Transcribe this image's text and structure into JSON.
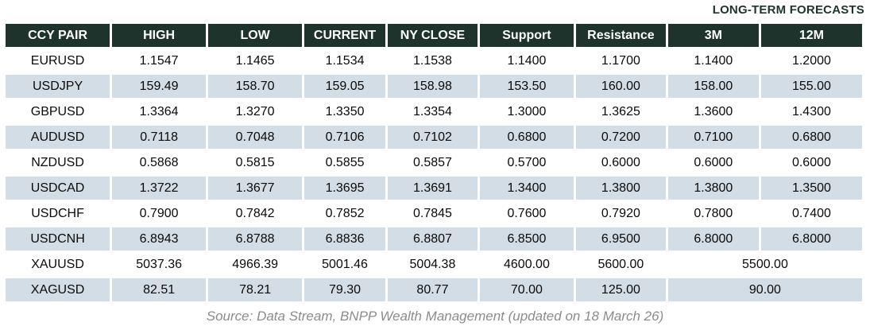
{
  "forecast_label": "LONG-TERM FORECASTS",
  "table": {
    "columns": [
      "CCY PAIR",
      "HIGH",
      "LOW",
      "CURRENT",
      "NY CLOSE",
      "Support",
      "Resistance",
      "3M",
      "12M"
    ],
    "rows": [
      {
        "cells": [
          "EURUSD",
          "1.1547",
          "1.1465",
          "1.1534",
          "1.1538",
          "1.1400",
          "1.1700",
          "1.1400",
          "1.2000"
        ]
      },
      {
        "cells": [
          "USDJPY",
          "159.49",
          "158.70",
          "159.05",
          "158.98",
          "153.50",
          "160.00",
          "158.00",
          "155.00"
        ]
      },
      {
        "cells": [
          "GBPUSD",
          "1.3364",
          "1.3270",
          "1.3350",
          "1.3354",
          "1.3000",
          "1.3625",
          "1.3600",
          "1.4300"
        ]
      },
      {
        "cells": [
          "AUDUSD",
          "0.7118",
          "0.7048",
          "0.7106",
          "0.7102",
          "0.6800",
          "0.7200",
          "0.7100",
          "0.6800"
        ]
      },
      {
        "cells": [
          "NZDUSD",
          "0.5868",
          "0.5815",
          "0.5855",
          "0.5857",
          "0.5700",
          "0.6000",
          "0.6000",
          "0.6000"
        ]
      },
      {
        "cells": [
          "USDCAD",
          "1.3722",
          "1.3677",
          "1.3695",
          "1.3691",
          "1.3400",
          "1.3800",
          "1.3800",
          "1.3500"
        ]
      },
      {
        "cells": [
          "USDCHF",
          "0.7900",
          "0.7842",
          "0.7852",
          "0.7845",
          "0.7600",
          "0.7920",
          "0.7800",
          "0.7400"
        ]
      },
      {
        "cells": [
          "USDCNH",
          "6.8943",
          "6.8788",
          "6.8836",
          "6.8807",
          "6.8500",
          "6.9500",
          "6.8000",
          "6.8000"
        ]
      },
      {
        "cells": [
          "XAUUSD",
          "5037.36",
          "4966.39",
          "5001.46",
          "5004.38",
          "4600.00",
          "5600.00"
        ],
        "forecast_merged": "5500.00"
      },
      {
        "cells": [
          "XAGUSD",
          "82.51",
          "78.21",
          "79.30",
          "80.77",
          "70.00",
          "125.00"
        ],
        "forecast_merged": "90.00"
      }
    ]
  },
  "footer": {
    "source": "Source: Data Stream, BNPP Wealth Management (updated on 18 March 26)"
  },
  "colors": {
    "header_bg": "#1d332c",
    "header_text": "#ffffff",
    "alt_row_bg": "#d3dde5",
    "forecast_label_text": "#1d332c",
    "source_text": "#8c8c8c"
  },
  "chart_data": {
    "type": "table",
    "title": "LONG-TERM FORECASTS",
    "columns": [
      "CCY PAIR",
      "HIGH",
      "LOW",
      "CURRENT",
      "NY CLOSE",
      "Support",
      "Resistance",
      "3M",
      "12M"
    ],
    "rows": [
      [
        "EURUSD",
        1.1547,
        1.1465,
        1.1534,
        1.1538,
        1.14,
        1.17,
        1.14,
        1.2
      ],
      [
        "USDJPY",
        159.49,
        158.7,
        159.05,
        158.98,
        153.5,
        160.0,
        158.0,
        155.0
      ],
      [
        "GBPUSD",
        1.3364,
        1.327,
        1.335,
        1.3354,
        1.3,
        1.3625,
        1.36,
        1.43
      ],
      [
        "AUDUSD",
        0.7118,
        0.7048,
        0.7106,
        0.7102,
        0.68,
        0.72,
        0.71,
        0.68
      ],
      [
        "NZDUSD",
        0.5868,
        0.5815,
        0.5855,
        0.5857,
        0.57,
        0.6,
        0.6,
        0.6
      ],
      [
        "USDCAD",
        1.3722,
        1.3677,
        1.3695,
        1.3691,
        1.34,
        1.38,
        1.38,
        1.35
      ],
      [
        "USDCHF",
        0.79,
        0.7842,
        0.7852,
        0.7845,
        0.76,
        0.792,
        0.78,
        0.74
      ],
      [
        "USDCNH",
        6.8943,
        6.8788,
        6.8836,
        6.8807,
        6.85,
        6.95,
        6.8,
        6.8
      ],
      [
        "XAUUSD",
        5037.36,
        4966.39,
        5001.46,
        5004.38,
        4600.0,
        5600.0,
        5500.0,
        5500.0
      ],
      [
        "XAGUSD",
        82.51,
        78.21,
        79.3,
        80.77,
        70.0,
        125.0,
        90.0,
        90.0
      ]
    ]
  }
}
